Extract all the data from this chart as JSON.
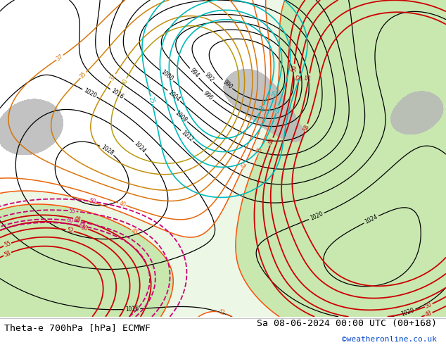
{
  "title_left": "Theta-e 700hPa [hPa] ECMWF",
  "title_right": "Sa 08-06-2024 00:00 UTC (00+168)",
  "watermark": "©weatheronline.co.uk",
  "bg_color": "#e8e8e0",
  "green_fill_color": "#c8e8b0",
  "gray_fill_color": "#b8b8b8",
  "black_contour_color": "#000000",
  "cyan_contour_color": "#00bbbb",
  "orange_contour_color": "#dd8800",
  "yellow_contour_color": "#ccaa00",
  "red_contour_color": "#cc0000",
  "magenta_contour_color": "#cc0077",
  "bottom_bar_color": "#ffffff",
  "title_font_size": 9.5,
  "watermark_color": "#0044cc",
  "figsize": [
    6.34,
    4.9
  ],
  "dpi": 100
}
